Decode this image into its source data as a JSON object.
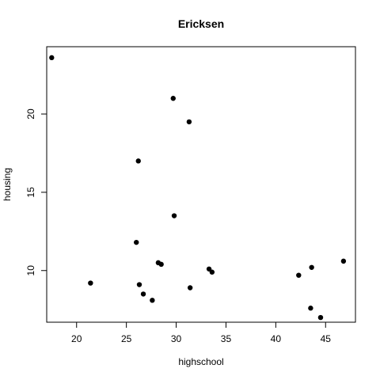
{
  "chart_data": {
    "type": "scatter",
    "title": "Ericksen",
    "xlabel": "highschool",
    "ylabel": "housing",
    "xlim": [
      17,
      48
    ],
    "ylim": [
      6.7,
      24.3
    ],
    "x_ticks": [
      20,
      25,
      30,
      35,
      40,
      45
    ],
    "y_ticks": [
      10,
      15,
      20
    ],
    "grid": false,
    "legend": "none",
    "marker_color": "#000000",
    "points": [
      {
        "x": 17.5,
        "y": 23.6
      },
      {
        "x": 29.7,
        "y": 21.0
      },
      {
        "x": 31.3,
        "y": 19.5
      },
      {
        "x": 26.2,
        "y": 17.0
      },
      {
        "x": 29.8,
        "y": 13.5
      },
      {
        "x": 26.0,
        "y": 11.8
      },
      {
        "x": 28.2,
        "y": 10.5
      },
      {
        "x": 28.5,
        "y": 10.4
      },
      {
        "x": 33.3,
        "y": 10.1
      },
      {
        "x": 33.6,
        "y": 9.9
      },
      {
        "x": 21.4,
        "y": 9.2
      },
      {
        "x": 26.3,
        "y": 9.1
      },
      {
        "x": 31.4,
        "y": 8.9
      },
      {
        "x": 26.7,
        "y": 8.5
      },
      {
        "x": 27.6,
        "y": 8.1
      },
      {
        "x": 42.3,
        "y": 9.7
      },
      {
        "x": 43.6,
        "y": 10.2
      },
      {
        "x": 46.8,
        "y": 10.6
      },
      {
        "x": 43.5,
        "y": 7.6
      },
      {
        "x": 44.5,
        "y": 7.0
      }
    ]
  }
}
